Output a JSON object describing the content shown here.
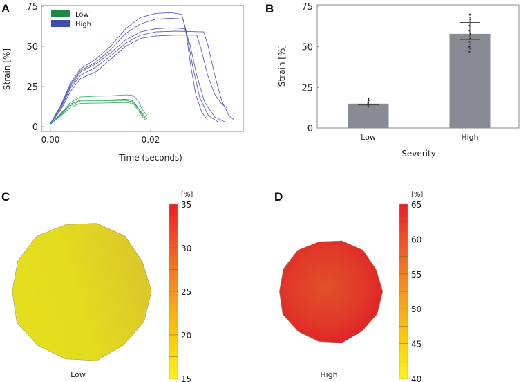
{
  "chart_data": [
    {
      "panel": "A",
      "type": "line",
      "xlabel": "Time (seconds)",
      "ylabel": "Strain [%]",
      "xlim": [
        -0.0018,
        0.0385
      ],
      "ylim": [
        0,
        75
      ],
      "xticks": [
        "0.00",
        "0.02"
      ],
      "xtick_values": [
        0.0,
        0.02
      ],
      "yticks": [
        "0",
        "25",
        "50",
        "75"
      ],
      "ytick_values": [
        0,
        25,
        50,
        75
      ],
      "legend": {
        "placement": "top-left",
        "entries": [
          {
            "label": "Low",
            "color": "#1e8a45"
          },
          {
            "label": "High",
            "color": "#3f4ea8"
          }
        ]
      },
      "series": [
        {
          "name": "High",
          "color": "#5b5fb8",
          "points": [
            [
              0,
              2
            ],
            [
              0.002,
              13
            ],
            [
              0.004,
              27
            ],
            [
              0.006,
              36
            ],
            [
              0.009,
              42
            ],
            [
              0.012,
              50
            ],
            [
              0.015,
              61
            ],
            [
              0.018,
              68
            ],
            [
              0.021,
              70.5
            ],
            [
              0.024,
              71
            ],
            [
              0.0262,
              70
            ],
            [
              0.027,
              60
            ],
            [
              0.028,
              38
            ],
            [
              0.029,
              20
            ],
            [
              0.0302,
              9
            ],
            [
              0.0314,
              4
            ]
          ]
        },
        {
          "name": "High",
          "color": "#5b5fb8",
          "points": [
            [
              0,
              2
            ],
            [
              0.002,
              12
            ],
            [
              0.004,
              26
            ],
            [
              0.006,
              35
            ],
            [
              0.009,
              40
            ],
            [
              0.012,
              48
            ],
            [
              0.015,
              58
            ],
            [
              0.018,
              64
            ],
            [
              0.021,
              67
            ],
            [
              0.024,
              67.5
            ],
            [
              0.0265,
              67
            ],
            [
              0.0272,
              58
            ],
            [
              0.0285,
              36
            ],
            [
              0.0298,
              18
            ],
            [
              0.0315,
              7
            ],
            [
              0.0334,
              3
            ]
          ]
        },
        {
          "name": "High",
          "color": "#5b5fb8",
          "points": [
            [
              0,
              2
            ],
            [
              0.002,
              12
            ],
            [
              0.004,
              25
            ],
            [
              0.006,
              34
            ],
            [
              0.009,
              39
            ],
            [
              0.012,
              46
            ],
            [
              0.015,
              54
            ],
            [
              0.018,
              59
            ],
            [
              0.021,
              61
            ],
            [
              0.024,
              61.5
            ],
            [
              0.0268,
              61
            ],
            [
              0.0278,
              52
            ],
            [
              0.0292,
              32
            ],
            [
              0.0308,
              15
            ],
            [
              0.0328,
              6
            ],
            [
              0.0348,
              3
            ]
          ]
        },
        {
          "name": "High",
          "color": "#5b5fb8",
          "points": [
            [
              0,
              2
            ],
            [
              0.002,
              11
            ],
            [
              0.004,
              24
            ],
            [
              0.006,
              32
            ],
            [
              0.009,
              37
            ],
            [
              0.012,
              44
            ],
            [
              0.015,
              52
            ],
            [
              0.018,
              57
            ],
            [
              0.021,
              59
            ],
            [
              0.025,
              59.5
            ],
            [
              0.0306,
              59
            ],
            [
              0.0315,
              50
            ],
            [
              0.0328,
              32
            ],
            [
              0.0342,
              16
            ],
            [
              0.0356,
              7
            ],
            [
              0.0367,
              4
            ]
          ]
        },
        {
          "name": "High",
          "color": "#5b5fb8",
          "points": [
            [
              0,
              2
            ],
            [
              0.002,
              10
            ],
            [
              0.004,
              22
            ],
            [
              0.006,
              30
            ],
            [
              0.009,
              34
            ],
            [
              0.012,
              42
            ],
            [
              0.015,
              50
            ],
            [
              0.018,
              55
            ],
            [
              0.021,
              56.5
            ],
            [
              0.025,
              57
            ],
            [
              0.0292,
              57
            ],
            [
              0.0301,
              48
            ],
            [
              0.0314,
              32
            ],
            [
              0.0328,
              20
            ],
            [
              0.0342,
              14
            ],
            [
              0.0353,
              11.5
            ]
          ]
        },
        {
          "name": "Low",
          "color": "#3db36b",
          "points": [
            [
              0,
              1.5
            ],
            [
              0.002,
              8
            ],
            [
              0.004,
              15
            ],
            [
              0.006,
              18.5
            ],
            [
              0.009,
              19
            ],
            [
              0.012,
              19.2
            ],
            [
              0.015,
              19.8
            ],
            [
              0.0165,
              19.5
            ],
            [
              0.0175,
              16
            ],
            [
              0.0185,
              10
            ],
            [
              0.0193,
              7
            ]
          ]
        },
        {
          "name": "Low",
          "color": "#1e8a45",
          "points": [
            [
              0,
              1.5
            ],
            [
              0.002,
              7.5
            ],
            [
              0.004,
              14
            ],
            [
              0.006,
              16.5
            ],
            [
              0.009,
              16.6
            ],
            [
              0.012,
              16.7
            ],
            [
              0.015,
              17
            ],
            [
              0.0162,
              16.5
            ],
            [
              0.0172,
              13
            ],
            [
              0.0182,
              8
            ],
            [
              0.019,
              5
            ]
          ]
        },
        {
          "name": "Low",
          "color": "#3db36b",
          "points": [
            [
              0,
              1.5
            ],
            [
              0.002,
              7
            ],
            [
              0.004,
              13
            ],
            [
              0.006,
              16
            ],
            [
              0.009,
              16.1
            ],
            [
              0.012,
              16.2
            ],
            [
              0.015,
              16.4
            ],
            [
              0.0163,
              15.5
            ],
            [
              0.0173,
              11
            ],
            [
              0.0183,
              6.5
            ],
            [
              0.019,
              4
            ]
          ]
        },
        {
          "name": "Low",
          "color": "#3db36b",
          "points": [
            [
              0,
              1.5
            ],
            [
              0.002,
              6.5
            ],
            [
              0.004,
              12
            ],
            [
              0.006,
              14.5
            ],
            [
              0.009,
              14.6
            ],
            [
              0.012,
              14.8
            ],
            [
              0.015,
              15
            ],
            [
              0.0165,
              14.5
            ],
            [
              0.0176,
              11
            ],
            [
              0.0186,
              7.5
            ],
            [
              0.0193,
              5
            ]
          ]
        }
      ]
    },
    {
      "panel": "B",
      "type": "bar",
      "xlabel": "Severity",
      "ylabel": "Strain [%]",
      "ylim": [
        0,
        75
      ],
      "yticks": [
        "0",
        "25",
        "50",
        "75"
      ],
      "ytick_values": [
        0,
        25,
        50,
        75
      ],
      "categories": [
        "Low",
        "High"
      ],
      "values": [
        15,
        58
      ],
      "error_low": [
        14.2,
        54.5
      ],
      "error_high": [
        17.3,
        65
      ],
      "points": [
        [
          13,
          14,
          14.5,
          15,
          15.5,
          16,
          17,
          18
        ],
        [
          47,
          50,
          53,
          55,
          58,
          60,
          63,
          67,
          70
        ]
      ],
      "bar_color": "#878c94"
    },
    {
      "panel": "C",
      "type": "heatmap",
      "label": "Low",
      "colorbar_unit": "[%]",
      "colorbar_range": [
        15,
        35
      ],
      "colorbar_ticks": [
        "15",
        "20",
        "25",
        "30",
        "35"
      ],
      "colorbar_tick_values": [
        15,
        20,
        25,
        30,
        35
      ],
      "colors": [
        "#e4df1c",
        "#dcc82a"
      ]
    },
    {
      "panel": "D",
      "type": "heatmap",
      "label": "High",
      "colorbar_unit": "[%]",
      "colorbar_range": [
        40,
        65
      ],
      "colorbar_ticks": [
        "40",
        "45",
        "50",
        "55",
        "60",
        "65"
      ],
      "colorbar_tick_values": [
        40,
        45,
        50,
        55,
        60,
        65
      ],
      "colors": [
        "#e24a2a",
        "#e01f26"
      ]
    }
  ],
  "panel_labels": [
    "A",
    "B",
    "C",
    "D"
  ],
  "colorbar_gradient": [
    "#fff21a",
    "#fcc70c",
    "#f7941d",
    "#f05a28",
    "#ed1c24"
  ]
}
